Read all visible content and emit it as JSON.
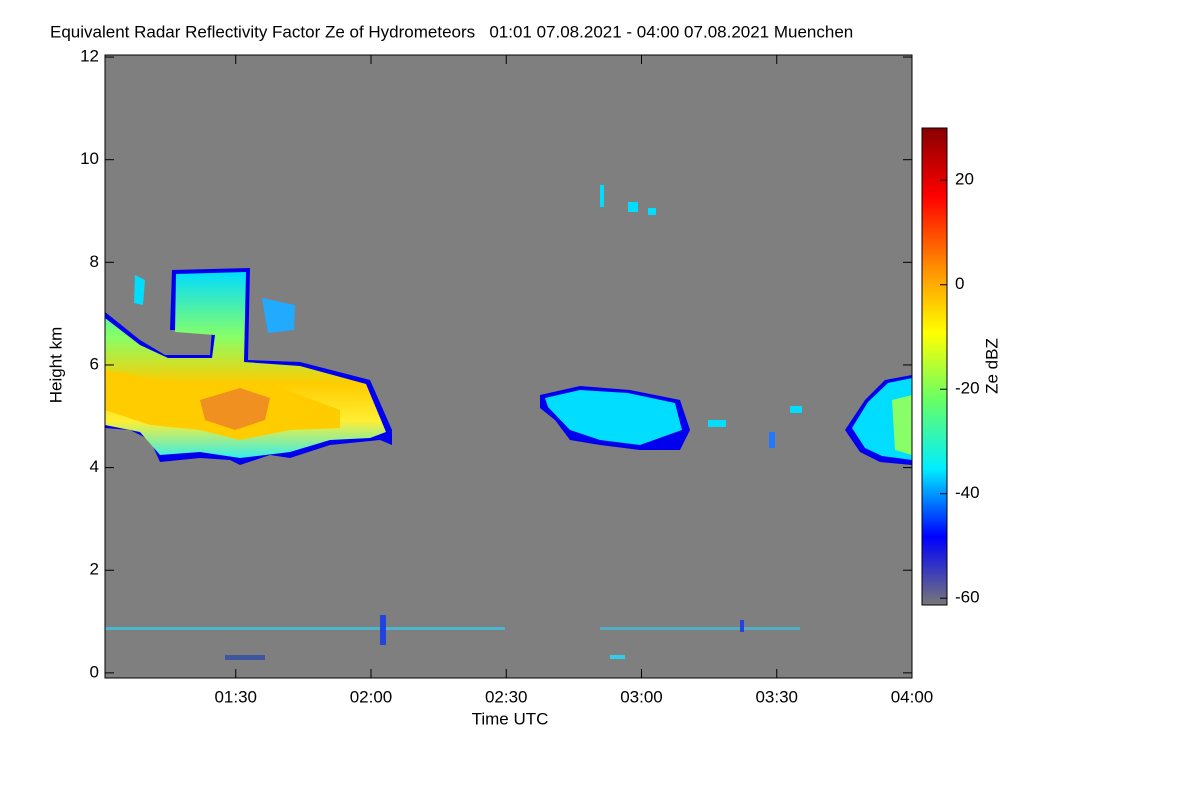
{
  "chart_data": {
    "type": "time-height",
    "title": "Equivalent Radar Reflectivity Factor Ze of Hydrometeors   01:01 07.08.2021 - 04:00 07.08.2021 Muenchen",
    "xlabel": "Time UTC",
    "ylabel": "Height km",
    "xlim": [
      61,
      240
    ],
    "xticks": [
      {
        "value": 90,
        "label": "01:30"
      },
      {
        "value": 120,
        "label": "02:00"
      },
      {
        "value": 150,
        "label": "02:30"
      },
      {
        "value": 180,
        "label": "03:00"
      },
      {
        "value": 210,
        "label": "03:30"
      },
      {
        "value": 240,
        "label": "04:00"
      }
    ],
    "ylim": [
      -0.1,
      12.04
    ],
    "yticks": [
      0,
      2,
      4,
      6,
      8,
      10,
      12
    ],
    "background": "#7f7f7f",
    "colorbar": {
      "label": "Ze dBZ",
      "clim": [
        -61.3,
        30
      ],
      "ticks": [
        -60,
        -40,
        -20,
        0,
        20
      ],
      "colormap": [
        "#777777",
        "#0000ff",
        "#00eeff",
        "#66ff66",
        "#ffff00",
        "#ff8800",
        "#ff0000",
        "#880000"
      ]
    }
  }
}
